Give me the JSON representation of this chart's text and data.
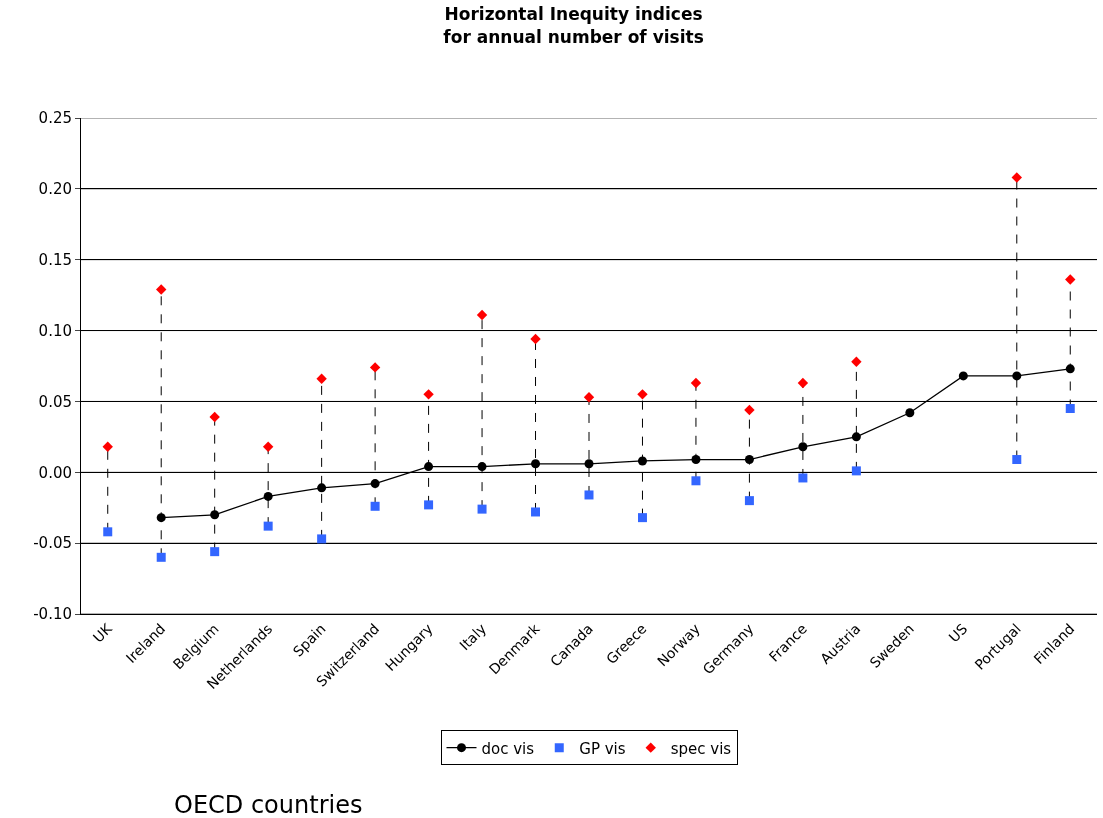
{
  "chart_data": {
    "type": "line",
    "title": "Horizontal Inequity indices\nfor annual number of visits",
    "categories": [
      "UK",
      "Ireland",
      "Belgium",
      "Netherlands",
      "Spain",
      "Switzerland",
      "Hungary",
      "Italy",
      "Denmark",
      "Canada",
      "Greece",
      "Norway",
      "Germany",
      "France",
      "Austria",
      "Sweden",
      "US",
      "Portugal",
      "Finland"
    ],
    "series": [
      {
        "name": "doc vis",
        "marker": "circle",
        "color": "#000000",
        "values": [
          null,
          -0.032,
          -0.03,
          -0.017,
          -0.011,
          -0.008,
          0.004,
          0.004,
          0.006,
          0.006,
          0.008,
          0.009,
          0.009,
          0.018,
          0.025,
          0.042,
          0.068,
          0.068,
          0.073
        ]
      },
      {
        "name": "GP vis",
        "type": "scatter",
        "marker": "square",
        "color": "#3366ff",
        "values": [
          -0.042,
          -0.06,
          -0.056,
          -0.038,
          -0.047,
          -0.024,
          -0.023,
          -0.026,
          -0.028,
          -0.016,
          -0.032,
          -0.006,
          -0.02,
          -0.004,
          0.001,
          null,
          null,
          0.009,
          0.045
        ]
      },
      {
        "name": "spec vis",
        "type": "scatter",
        "marker": "diamond",
        "color": "#ff0000",
        "values": [
          0.018,
          0.129,
          0.039,
          0.018,
          0.066,
          0.074,
          0.055,
          0.111,
          0.094,
          0.053,
          0.055,
          0.063,
          0.044,
          0.063,
          0.078,
          null,
          null,
          0.208,
          0.136
        ]
      }
    ],
    "ylim": [
      -0.1,
      0.25
    ],
    "yticks": [
      {
        "value": -0.1,
        "label": "-0.10"
      },
      {
        "value": -0.05,
        "label": "-0.05"
      },
      {
        "value": 0,
        "label": "0.00"
      },
      {
        "value": 0.05,
        "label": "0.05"
      },
      {
        "value": 0.1,
        "label": "0.10"
      },
      {
        "value": 0.15,
        "label": "0.15"
      },
      {
        "value": 0.2,
        "label": "0.20"
      },
      {
        "value": 0.25,
        "label": "0.25"
      }
    ],
    "grid": "y",
    "legend": "bottom",
    "annotations": [
      "OECD countries"
    ]
  }
}
